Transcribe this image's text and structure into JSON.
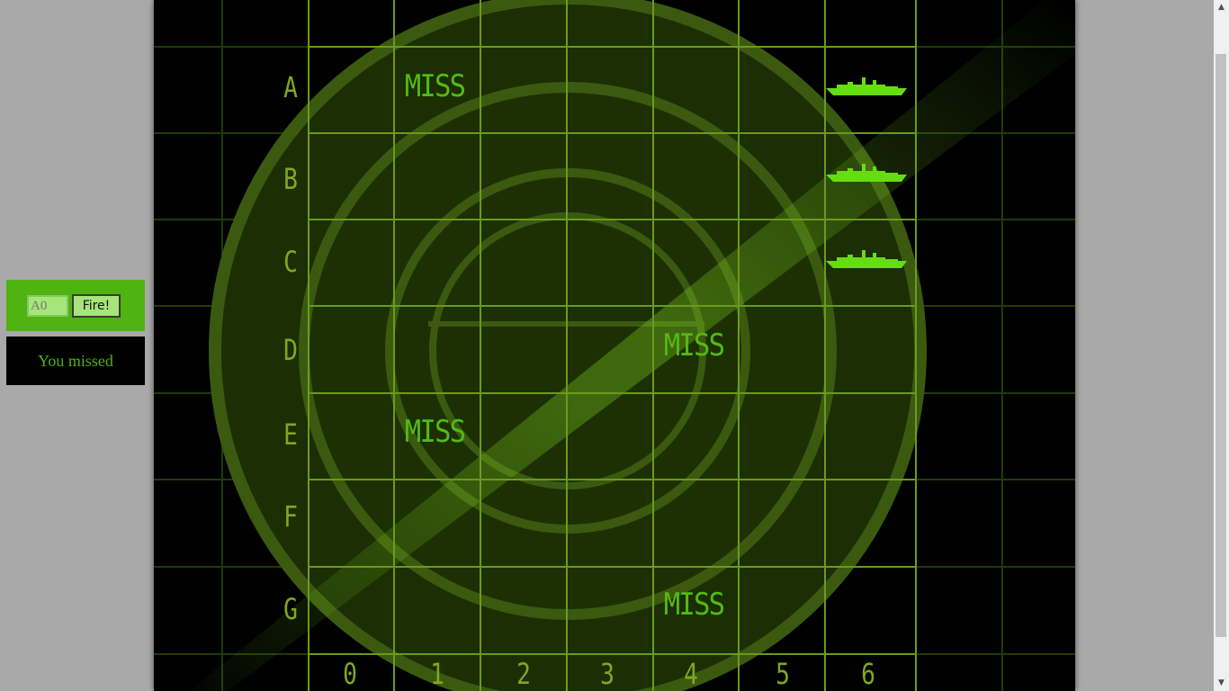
{
  "controls": {
    "guess_placeholder": "A0",
    "fire_label": "Fire!"
  },
  "message": "You missed",
  "board": {
    "rows": [
      "A",
      "B",
      "C",
      "D",
      "E",
      "F",
      "G"
    ],
    "columns": [
      "0",
      "1",
      "2",
      "3",
      "4",
      "5",
      "6"
    ],
    "miss_label": "MISS",
    "misses": [
      "A1",
      "D4",
      "E1",
      "G4"
    ],
    "hits": [
      "A6",
      "B6",
      "C6"
    ],
    "hit_icon": "battleship-icon"
  },
  "colors": {
    "page_background": "#a9a9a9",
    "panel_green": "#4fb311",
    "grid_green": "#7fa820",
    "ship_green": "#66dd11"
  }
}
